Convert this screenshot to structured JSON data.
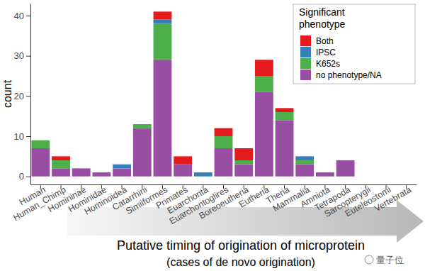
{
  "chart_data": {
    "type": "bar",
    "stacked": true,
    "grid": false,
    "legend": "top-right",
    "legend_title": "Significant phenotype",
    "y_label": "count",
    "x_label": [
      "Putative timing of origination of microprotein",
      "(cases of de novo origination)"
    ],
    "annotations": [
      "量子位"
    ],
    "categories": [
      "Human",
      "Human_Chimp",
      "Homininae",
      "Hominidae",
      "Hominoidea",
      "Catarrhini",
      "Simiiformes",
      "Primates",
      "Euarchonta",
      "Euarchontoglires",
      "Boreoeutheria",
      "Eutheria",
      "Theria",
      "Mammalia",
      "Amniota",
      "Tetrapoda",
      "Sarcopterygii",
      "Euteleostomi",
      "Vertebrata"
    ],
    "series": [
      {
        "name": "Both",
        "color": "#e41a1c",
        "values": [
          0,
          1,
          0,
          0,
          0,
          0,
          2,
          2,
          0,
          2,
          3,
          4,
          1,
          0,
          0,
          0,
          0,
          0,
          0
        ]
      },
      {
        "name": "IPSC",
        "color": "#377eb8",
        "values": [
          0,
          0,
          0,
          0,
          1,
          0,
          1,
          0,
          1,
          0,
          0,
          0,
          0,
          1,
          0,
          0,
          0,
          0,
          0
        ]
      },
      {
        "name": "K652s",
        "color": "#4daf4a",
        "values": [
          2,
          2,
          0,
          0,
          0,
          1,
          9,
          0,
          0,
          3,
          1,
          4,
          2,
          1,
          0,
          0,
          0,
          0,
          0
        ]
      },
      {
        "name": "no phenotype/NA",
        "color": "#984ea3",
        "values": [
          7,
          2,
          2,
          1,
          2,
          12,
          29,
          3,
          0,
          7,
          3,
          21,
          14,
          3,
          1,
          4,
          0,
          0,
          0
        ]
      }
    ],
    "ylim": [
      -2,
      43
    ],
    "yticks": [
      0,
      10,
      20,
      30,
      40
    ]
  }
}
